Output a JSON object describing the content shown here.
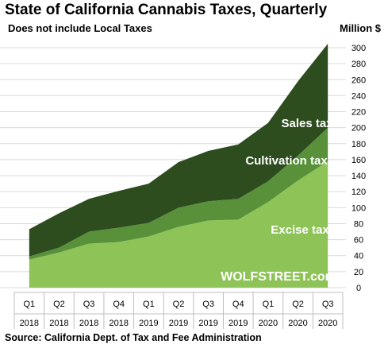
{
  "header": {
    "title": "State of California  Cannabis  Taxes,  Quarterly",
    "subtitle": "Does not include Local Taxes",
    "unit_label": "Million $"
  },
  "footer": {
    "source": "Source: California Dept. of Tax and Fee Administration"
  },
  "watermark": "WOLFSTREET.com",
  "colors": {
    "excise": "#8ec357",
    "cultivation": "#58913a",
    "sales": "#2d4d1f",
    "grid": "#d9d9d9"
  },
  "chart_data": {
    "type": "area",
    "stacked": true,
    "categories": [
      [
        "Q1",
        "2018"
      ],
      [
        "Q2",
        "2018"
      ],
      [
        "Q3",
        "2018"
      ],
      [
        "Q4",
        "2018"
      ],
      [
        "Q1",
        "2019"
      ],
      [
        "Q2",
        "2019"
      ],
      [
        "Q3",
        "2019"
      ],
      [
        "Q4",
        "2019"
      ],
      [
        "Q1",
        "2020"
      ],
      [
        "Q2",
        "2020"
      ],
      [
        "Q3",
        "2020"
      ]
    ],
    "series": [
      {
        "name": "Excise tax",
        "values": [
          35,
          44,
          55,
          57,
          64,
          76,
          84,
          85,
          107,
          134,
          158
        ]
      },
      {
        "name": "Cultivation tax",
        "values": [
          4,
          6,
          15,
          18,
          17,
          24,
          24,
          26,
          26,
          31,
          42
        ]
      },
      {
        "name": "Sales tax",
        "values": [
          34,
          43,
          41,
          46,
          49,
          57,
          63,
          68,
          73,
          93,
          105
        ]
      }
    ],
    "ylim": [
      0,
      300
    ],
    "yticks": [
      0,
      20,
      40,
      60,
      80,
      100,
      120,
      140,
      160,
      180,
      200,
      220,
      240,
      260,
      280,
      300
    ],
    "y_axis_side": "right",
    "grid": true,
    "legend": "inline labels"
  }
}
